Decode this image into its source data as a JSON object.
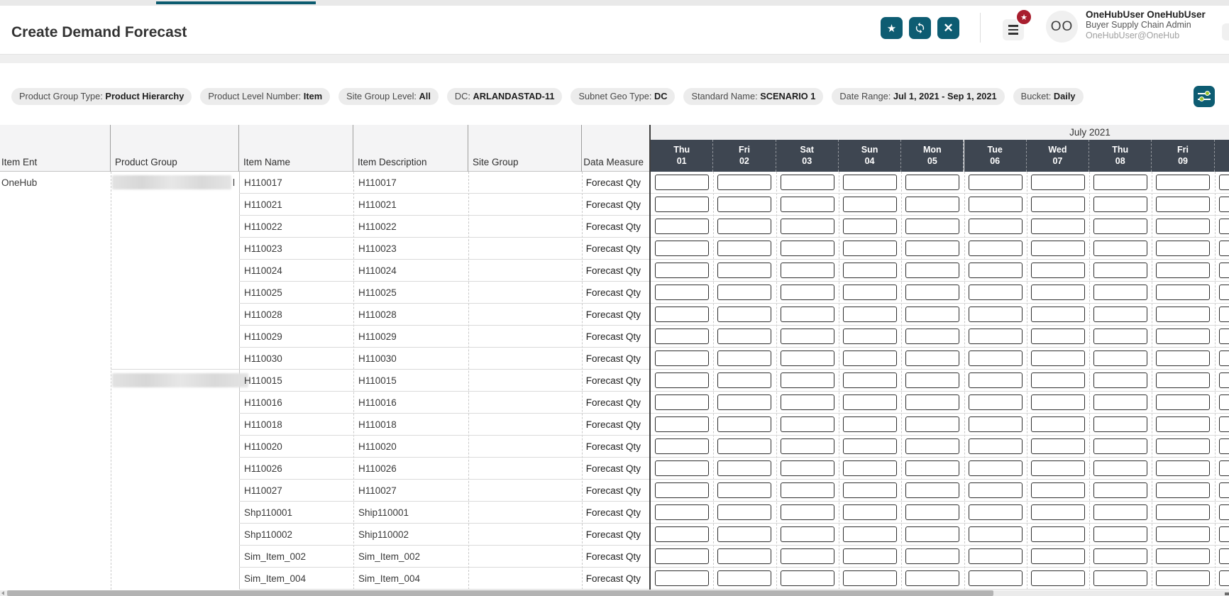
{
  "app": {
    "title": "Create Demand Forecast"
  },
  "toolbar": {
    "favorite_icon": "★",
    "close_icon": "✕",
    "badge_icon": "★"
  },
  "user": {
    "initials": "OO",
    "name": "OneHubUser OneHubUser",
    "role": "Buyer Supply Chain Admin",
    "account": "OneHubUser@OneHub"
  },
  "filters": [
    {
      "label": "Product Group Type:",
      "value": "Product Hierarchy"
    },
    {
      "label": "Product Level Number:",
      "value": "Item"
    },
    {
      "label": "Site Group Level:",
      "value": "All"
    },
    {
      "label": "DC:",
      "value": "ARLANDASTAD-11"
    },
    {
      "label": "Subnet Geo Type:",
      "value": "DC"
    },
    {
      "label": "Standard Name:",
      "value": "SCENARIO 1"
    },
    {
      "label": "Date Range:",
      "value": "Jul 1, 2021 - Sep 1, 2021"
    },
    {
      "label": "Bucket:",
      "value": "Daily"
    }
  ],
  "table": {
    "columns": [
      "Item Ent",
      "Product Group",
      "Item Name",
      "Item Description",
      "Site Group",
      "Data Measure"
    ],
    "month": "July 2021",
    "days": [
      {
        "dow": "Thu",
        "date": "01"
      },
      {
        "dow": "Fri",
        "date": "02"
      },
      {
        "dow": "Sat",
        "date": "03"
      },
      {
        "dow": "Sun",
        "date": "04"
      },
      {
        "dow": "Mon",
        "date": "05"
      },
      {
        "dow": "Tue",
        "date": "06"
      },
      {
        "dow": "Wed",
        "date": "07"
      },
      {
        "dow": "Thu",
        "date": "08"
      },
      {
        "dow": "Fri",
        "date": "09"
      }
    ],
    "data_measure": "Forecast Qty",
    "cell_value": "",
    "groups": [
      {
        "item_ent": "OneHub",
        "product_group_redacted": true,
        "redaction_visible_char": "l",
        "items": [
          {
            "name": "H110017",
            "description": "H110017"
          },
          {
            "name": "H110021",
            "description": "H110021"
          },
          {
            "name": "H110022",
            "description": "H110022"
          },
          {
            "name": "H110023",
            "description": "H110023"
          },
          {
            "name": "H110024",
            "description": "H110024"
          },
          {
            "name": "H110025",
            "description": "H110025"
          },
          {
            "name": "H110028",
            "description": "H110028"
          },
          {
            "name": "H110029",
            "description": "H110029"
          },
          {
            "name": "H110030",
            "description": "H110030"
          }
        ]
      },
      {
        "item_ent": "",
        "product_group_redacted": true,
        "redaction_visible_char": "",
        "items": [
          {
            "name": "H110015",
            "description": "H110015"
          },
          {
            "name": "H110016",
            "description": "H110016"
          },
          {
            "name": "H110018",
            "description": "H110018"
          },
          {
            "name": "H110020",
            "description": "H110020"
          },
          {
            "name": "H110026",
            "description": "H110026"
          },
          {
            "name": "H110027",
            "description": "H110027"
          },
          {
            "name": "Shp110001",
            "description": "Ship110001"
          },
          {
            "name": "Shp110002",
            "description": "Ship110002"
          },
          {
            "name": "Sim_Item_002",
            "description": "Sim_Item_002"
          },
          {
            "name": "Sim_Item_004",
            "description": "Sim_Item_004"
          }
        ]
      }
    ]
  },
  "colors": {
    "accent_teal": "#0d5c72",
    "tab_indicator_teal": "#0b5b6f",
    "day_header_slate": "#3e4651",
    "badge_red": "#a81e2e",
    "filter_icon_green": "#9ac32c"
  }
}
